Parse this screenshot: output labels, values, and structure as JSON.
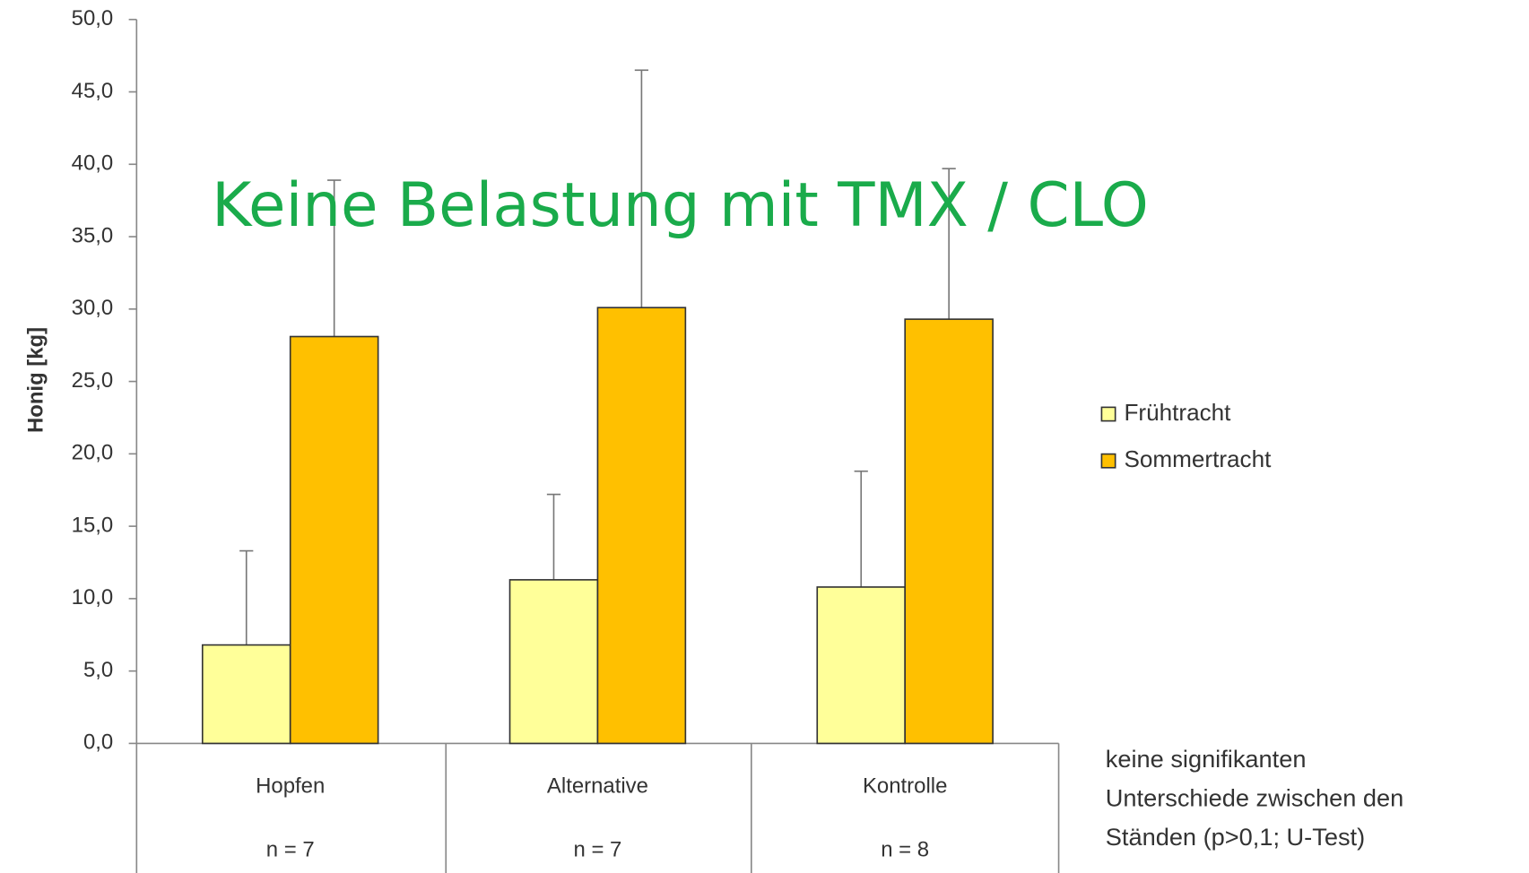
{
  "chart_data": {
    "type": "bar",
    "title": "Keine Belastung mit TMX / CLO",
    "ylabel": "Honig [kg]",
    "categories": [
      "Hopfen",
      "Alternative",
      "Kontrolle"
    ],
    "sample_sizes": [
      "n = 7",
      "n = 7",
      "n = 8"
    ],
    "series": [
      {
        "name": "Frühtracht",
        "color": "#ffff99",
        "values": [
          6.8,
          11.3,
          10.8
        ],
        "errors": [
          6.5,
          5.9,
          8.0
        ]
      },
      {
        "name": "Sommertracht",
        "color": "#ffc000",
        "values": [
          28.1,
          30.1,
          29.3
        ],
        "errors": [
          10.8,
          16.4,
          10.4
        ]
      }
    ],
    "ylim": [
      0,
      50
    ],
    "yticks": [
      {
        "value": 0,
        "label": "0,0"
      },
      {
        "value": 5,
        "label": "5,0"
      },
      {
        "value": 10,
        "label": "10,0"
      },
      {
        "value": 15,
        "label": "15,0"
      },
      {
        "value": 20,
        "label": "20,0"
      },
      {
        "value": 25,
        "label": "25,0"
      },
      {
        "value": 30,
        "label": "30,0"
      },
      {
        "value": 35,
        "label": "35,0"
      },
      {
        "value": 40,
        "label": "40,0"
      },
      {
        "value": 45,
        "label": "45,0"
      },
      {
        "value": 50,
        "label": "50,0"
      }
    ],
    "legend": "right",
    "annotation": [
      "keine signifikanten",
      "Unterschiede zwischen den",
      "Ständen (p>0,1; U-Test)"
    ]
  }
}
